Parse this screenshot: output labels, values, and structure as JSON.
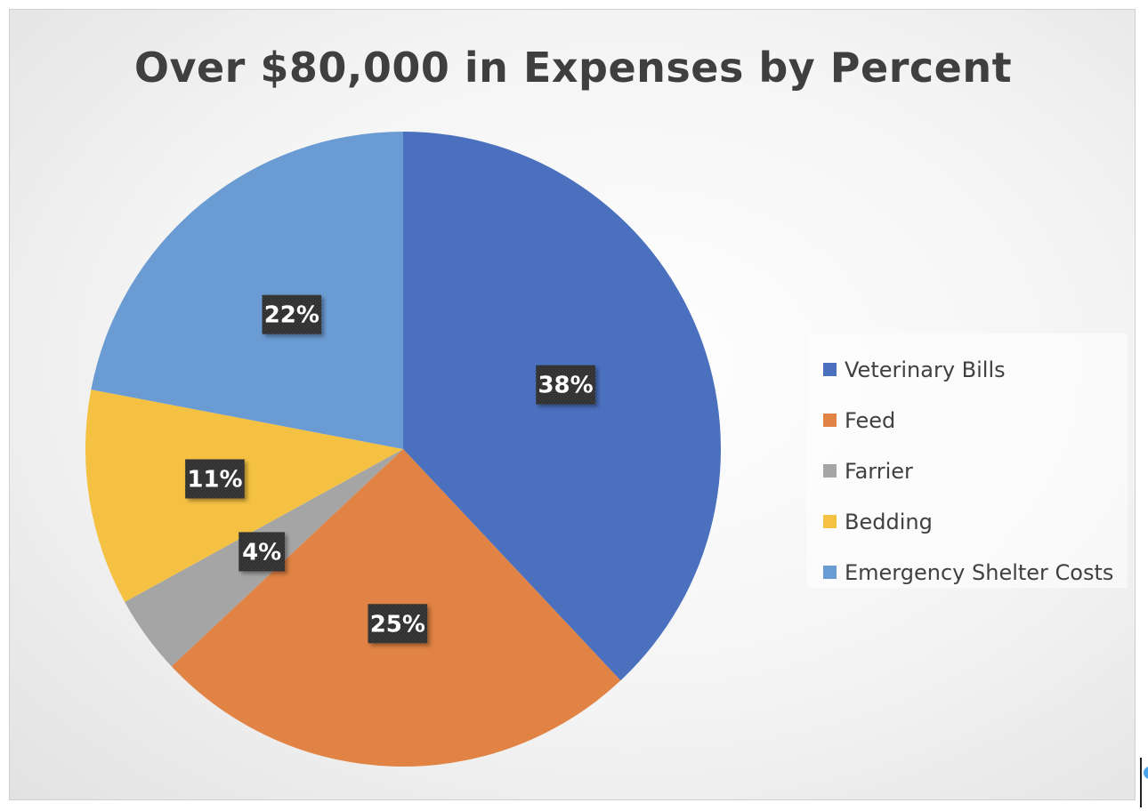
{
  "chart_data": {
    "type": "pie",
    "title": "Over $80,000 in Expenses by Percent",
    "categories": [
      "Veterinary Bills",
      "Feed",
      "Farrier",
      "Bedding",
      "Emergency Shelter Costs"
    ],
    "values": [
      38,
      25,
      4,
      11,
      22
    ],
    "data_labels": [
      "38%",
      "25%",
      "4%",
      "11%",
      "22%"
    ],
    "colors": [
      "#4a70be",
      "#e08344",
      "#a5a5a5",
      "#f4c142",
      "#6a9bd2"
    ],
    "legend_position": "right",
    "start_angle": "12 o'clock",
    "direction": "clockwise"
  }
}
